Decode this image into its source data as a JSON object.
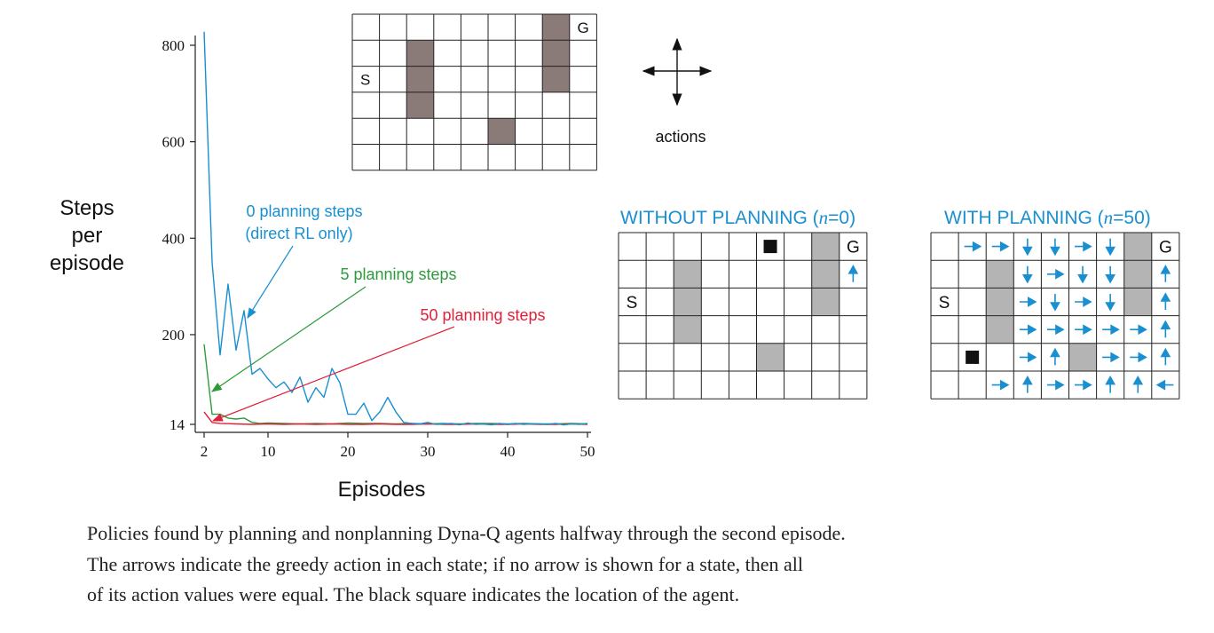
{
  "chart_data": {
    "type": "line",
    "ylabel": [
      "Steps",
      "per",
      "episode"
    ],
    "xlabel": "Episodes",
    "xticks": [
      2,
      10,
      20,
      30,
      40,
      50
    ],
    "yticks": [
      14,
      200,
      400,
      600,
      800
    ],
    "xlim": [
      2,
      50
    ],
    "ylim": [
      14,
      830
    ],
    "colors": {
      "n0": "#1a8fd0",
      "n5": "#2e9a3c",
      "n50": "#e0203a"
    },
    "series": [
      {
        "name": "0 planning steps",
        "name_line2": "(direct RL only)",
        "color_key": "n0",
        "x": [
          2,
          3,
          4,
          5,
          6,
          7,
          8,
          9,
          10,
          11,
          12,
          13,
          14,
          15,
          16,
          17,
          18,
          19,
          20,
          21,
          22,
          23,
          24,
          25,
          26,
          27,
          28,
          29,
          30,
          31,
          32,
          33,
          34,
          35,
          36,
          37,
          38,
          39,
          40,
          41,
          42,
          43,
          44,
          45,
          46,
          47,
          48,
          49,
          50
        ],
        "values": [
          828,
          350,
          158,
          305,
          168,
          250,
          118,
          130,
          108,
          90,
          102,
          80,
          112,
          60,
          90,
          70,
          130,
          100,
          35,
          35,
          58,
          22,
          40,
          70,
          40,
          18,
          16,
          15,
          18,
          14,
          15,
          16,
          13,
          17,
          14,
          15,
          13,
          16,
          14,
          16,
          14,
          15,
          15,
          14,
          16,
          13,
          15,
          14,
          16
        ]
      },
      {
        "name": "5 planning steps",
        "color_key": "n5",
        "x": [
          2,
          3,
          4,
          5,
          6,
          7,
          8,
          9,
          10,
          12,
          14,
          16,
          18,
          20,
          22,
          24,
          26,
          28,
          30,
          32,
          34,
          36,
          38,
          40,
          42,
          44,
          46,
          48,
          50
        ],
        "values": [
          180,
          35,
          35,
          27,
          25,
          27,
          18,
          16,
          17,
          16,
          15,
          16,
          15,
          17,
          16,
          16,
          15,
          16,
          15,
          16,
          15,
          16,
          16,
          15,
          16,
          15,
          15,
          16,
          15
        ]
      },
      {
        "name": "50 planning steps",
        "color_key": "n50",
        "x": [
          2,
          3,
          4,
          6,
          8,
          10,
          12,
          14,
          16,
          18,
          20,
          22,
          24,
          26,
          28,
          30,
          32,
          34,
          36,
          38,
          40,
          42,
          44,
          46,
          48,
          50
        ],
        "values": [
          40,
          18,
          16,
          15,
          14,
          15,
          14,
          15,
          14,
          15,
          14,
          14,
          15,
          14,
          14,
          15,
          14,
          14,
          15,
          14,
          14,
          15,
          14,
          14,
          15,
          14
        ]
      }
    ],
    "annotations": [
      {
        "series": 0,
        "text": "0 planning steps",
        "text2": "(direct RL only)"
      },
      {
        "series": 1,
        "text": "5 planning steps"
      },
      {
        "series": 2,
        "text": "50 planning steps"
      }
    ]
  },
  "maze": {
    "rows": 6,
    "cols": 9,
    "start_label": "S",
    "goal_label": "G",
    "start": [
      2,
      0
    ],
    "goal": [
      0,
      8
    ],
    "walls": [
      [
        1,
        2
      ],
      [
        2,
        2
      ],
      [
        3,
        2
      ],
      [
        4,
        5
      ],
      [
        0,
        7
      ],
      [
        1,
        7
      ],
      [
        2,
        7
      ]
    ],
    "wall_color_top": "#8a7a78",
    "wall_color_bottom": "#b4b4b4"
  },
  "actions_label": "actions",
  "without_planning": {
    "title_prefix": "WITHOUT PLANNING (",
    "n_symbol": "n",
    "n_value": "=0)",
    "agent": [
      0,
      5
    ],
    "arrows": [
      {
        "r": 1,
        "c": 8,
        "dir": "up"
      }
    ]
  },
  "with_planning": {
    "title_prefix": "WITH PLANNING (",
    "n_symbol": "n",
    "n_value": "=50)",
    "agent": [
      4,
      1
    ],
    "arrows": [
      {
        "r": 0,
        "c": 1,
        "dir": "right"
      },
      {
        "r": 0,
        "c": 2,
        "dir": "right"
      },
      {
        "r": 0,
        "c": 3,
        "dir": "down"
      },
      {
        "r": 0,
        "c": 4,
        "dir": "down"
      },
      {
        "r": 0,
        "c": 5,
        "dir": "right"
      },
      {
        "r": 0,
        "c": 6,
        "dir": "down"
      },
      {
        "r": 1,
        "c": 3,
        "dir": "down"
      },
      {
        "r": 1,
        "c": 4,
        "dir": "right"
      },
      {
        "r": 1,
        "c": 5,
        "dir": "down"
      },
      {
        "r": 1,
        "c": 6,
        "dir": "down"
      },
      {
        "r": 1,
        "c": 8,
        "dir": "up"
      },
      {
        "r": 2,
        "c": 3,
        "dir": "right"
      },
      {
        "r": 2,
        "c": 4,
        "dir": "down"
      },
      {
        "r": 2,
        "c": 5,
        "dir": "right"
      },
      {
        "r": 2,
        "c": 6,
        "dir": "down"
      },
      {
        "r": 2,
        "c": 8,
        "dir": "up"
      },
      {
        "r": 3,
        "c": 3,
        "dir": "right"
      },
      {
        "r": 3,
        "c": 4,
        "dir": "right"
      },
      {
        "r": 3,
        "c": 5,
        "dir": "right"
      },
      {
        "r": 3,
        "c": 6,
        "dir": "right"
      },
      {
        "r": 3,
        "c": 7,
        "dir": "right"
      },
      {
        "r": 3,
        "c": 8,
        "dir": "up"
      },
      {
        "r": 4,
        "c": 3,
        "dir": "right"
      },
      {
        "r": 4,
        "c": 4,
        "dir": "up"
      },
      {
        "r": 4,
        "c": 6,
        "dir": "right"
      },
      {
        "r": 4,
        "c": 7,
        "dir": "right"
      },
      {
        "r": 4,
        "c": 8,
        "dir": "up"
      },
      {
        "r": 5,
        "c": 2,
        "dir": "right"
      },
      {
        "r": 5,
        "c": 3,
        "dir": "up"
      },
      {
        "r": 5,
        "c": 4,
        "dir": "right"
      },
      {
        "r": 5,
        "c": 5,
        "dir": "right"
      },
      {
        "r": 5,
        "c": 6,
        "dir": "up"
      },
      {
        "r": 5,
        "c": 7,
        "dir": "up"
      },
      {
        "r": 5,
        "c": 8,
        "dir": "left"
      }
    ]
  },
  "arrow_color": "#1a8fd0",
  "caption": [
    "Policies found by planning and nonplanning Dyna-Q agents halfway through the second episode.",
    "The arrows indicate the greedy action in each state; if no arrow is shown for a state, then all",
    "of its action values were equal.  The black square indicates the location of the agent."
  ]
}
